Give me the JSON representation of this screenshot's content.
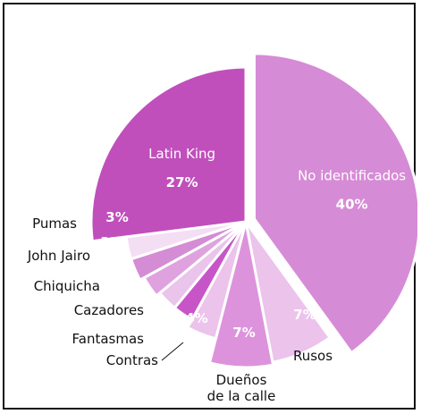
{
  "chart_data": {
    "type": "pie",
    "title": "",
    "slices": [
      {
        "key": "no-identificados",
        "label": "No identificados",
        "value": 40,
        "value_label": "40%",
        "color": "#d68bd6",
        "exploded": true
      },
      {
        "key": "rusos",
        "label": "Rusos",
        "value": 7,
        "value_label": "7%",
        "color": "#ebc3eb"
      },
      {
        "key": "duenos-de-la-calle",
        "label": "Dueños de la calle",
        "value": 7,
        "value_label": "7%",
        "color": "#dc93dc"
      },
      {
        "key": "contras",
        "label": "Contras",
        "value": 4,
        "value_label": "4%",
        "color": "#ebc3eb"
      },
      {
        "key": "fantasmas",
        "label": "Fantasmas",
        "value": 3,
        "value_label": "3%",
        "color": "#c855c8"
      },
      {
        "key": "cazadores",
        "label": "Cazadores",
        "value": 3,
        "value_label": "3%",
        "color": "#eac4ea"
      },
      {
        "key": "chiquicha",
        "label": "Chiquicha",
        "value": 3,
        "value_label": "3%",
        "color": "#dfa2df"
      },
      {
        "key": "john-jairo",
        "label": "John Jairo",
        "value": 3,
        "value_label": "3%",
        "color": "#d48cd4"
      },
      {
        "key": "pumas",
        "label": "Pumas",
        "value": 3,
        "value_label": "3%",
        "color": "#f4def4"
      },
      {
        "key": "latin-king",
        "label": "Latin King",
        "value": 27,
        "value_label": "27%",
        "color": "#c04fbb"
      }
    ]
  }
}
